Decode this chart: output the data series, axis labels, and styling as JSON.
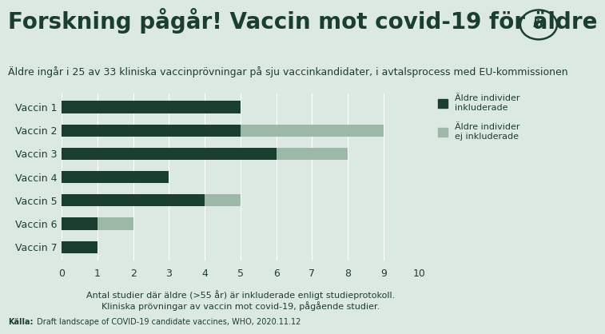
{
  "title": "Forskning pågår! Vaccin mot covid-19 för äldre",
  "subtitle": "Äldre ingår i 25 av 33 kliniska vaccinprövningar på sju vaccinkandidater, i avtalsprocess med EU-kommissionen",
  "categories": [
    "Vaccin 7",
    "Vaccin 6",
    "Vaccin 5",
    "Vaccin 4",
    "Vaccin 3",
    "Vaccin 2",
    "Vaccin 1"
  ],
  "dark_values": [
    1,
    1,
    4,
    3,
    6,
    5,
    5
  ],
  "light_values": [
    0,
    1,
    1,
    0,
    2,
    4,
    0
  ],
  "dark_color": "#1b3f2f",
  "light_color": "#9eb8a8",
  "background_color": "#dce8e2",
  "text_color": "#1b3f2f",
  "xlabel_line1": "Antal studier där äldre (>55 år) är inkluderade enligt studieprotokoll.",
  "xlabel_line2": "Kliniska prövningar av vaccin mot covid-19, pågående studier.",
  "legend_dark": "Äldre individer\ninkluderade",
  "legend_light": "Äldre individer\nej inkluderade",
  "footnote_bold": "Källa:",
  "footnote_text": " Draft landscape of COVID-19 candidate vaccines, WHO, 2020.11.12",
  "xlim": [
    0,
    10
  ],
  "xticks": [
    0,
    1,
    2,
    3,
    4,
    5,
    6,
    7,
    8,
    9,
    10
  ],
  "title_fontsize": 20,
  "subtitle_fontsize": 9,
  "tick_fontsize": 9,
  "label_fontsize": 8,
  "bar_height": 0.52
}
